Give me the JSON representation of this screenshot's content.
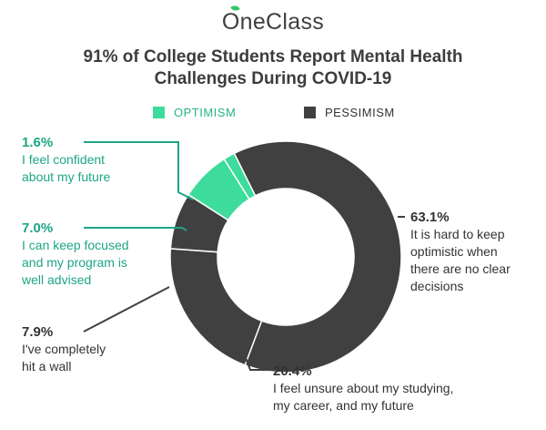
{
  "brand": {
    "name": "OneClass",
    "color": "#3ac46a",
    "leaf_icon": "leaf-icon"
  },
  "chart_data": {
    "type": "pie",
    "variant": "donut",
    "title": "91% of College Students Report Mental Health Challenges During COVID-19",
    "title_lines": [
      "91% of College Students Report Mental Health",
      "Challenges During COVID-19"
    ],
    "legend": [
      {
        "label": "OPTIMISM",
        "color": "#3ddc9c"
      },
      {
        "label": "PESSIMISM",
        "color": "#404040"
      }
    ],
    "legend_position": "top",
    "slices": [
      {
        "value": 63.1,
        "label": "63.1%",
        "text": "It is hard to keep optimistic when there are no clear decisions",
        "group": "PESSIMISM",
        "color": "#404040"
      },
      {
        "value": 20.4,
        "label": "20.4%",
        "text": "I feel unsure about my studying, my career, and my future",
        "group": "PESSIMISM",
        "color": "#404040"
      },
      {
        "value": 7.9,
        "label": "7.9%",
        "text": "I've completely hit a wall",
        "group": "PESSIMISM",
        "color": "#404040"
      },
      {
        "value": 7.0,
        "label": "7.0%",
        "text": "I can keep focused and my program is well advised",
        "group": "OPTIMISM",
        "color": "#3ddc9c"
      },
      {
        "value": 1.6,
        "label": "1.6%",
        "text": "I feel confident about my future",
        "group": "OPTIMISM",
        "color": "#3ddc9c"
      }
    ],
    "annotation_lines": {
      "s0": [
        "It is hard to keep",
        "optimistic when",
        "there are no clear",
        "decisions"
      ],
      "s1": [
        "I feel unsure about my studying,",
        "my career, and my future"
      ],
      "s2": [
        "I've completely",
        "hit a wall"
      ],
      "s3": [
        "I can keep focused",
        "and my program is",
        "well advised"
      ],
      "s4": [
        "I feel confident",
        "about my future"
      ]
    },
    "colors": {
      "optimism": "#3ddc9c",
      "pessimism": "#404040",
      "optimism_text": "#1ea585"
    }
  }
}
